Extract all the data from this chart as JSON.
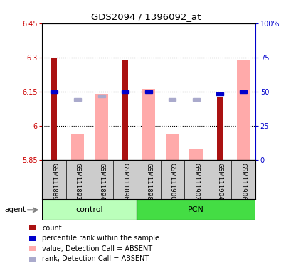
{
  "title": "GDS2094 / 1396092_at",
  "samples": [
    "GSM111889",
    "GSM111892",
    "GSM111894",
    "GSM111896",
    "GSM111898",
    "GSM111900",
    "GSM111902",
    "GSM111904",
    "GSM111906"
  ],
  "ylim_left": [
    5.85,
    6.45
  ],
  "yticks_left": [
    5.85,
    6.0,
    6.15,
    6.3,
    6.45
  ],
  "ytick_labels_left": [
    "5.85",
    "6",
    "6.15",
    "6.3",
    "6.45"
  ],
  "yticks_right_pct": [
    0,
    25,
    50,
    75,
    100
  ],
  "ytick_labels_right": [
    "0",
    "25",
    "50",
    "75",
    "100%"
  ],
  "hlines": [
    6.0,
    6.15,
    6.3
  ],
  "red_bar_values": [
    6.3,
    null,
    null,
    6.285,
    null,
    null,
    null,
    6.125,
    null
  ],
  "pink_bar_values": [
    null,
    5.965,
    6.14,
    null,
    6.16,
    5.965,
    5.9,
    null,
    6.285
  ],
  "blue_square_values": [
    6.148,
    null,
    null,
    6.148,
    6.148,
    null,
    null,
    6.14,
    6.148
  ],
  "lavender_square_values": [
    null,
    6.115,
    6.13,
    null,
    null,
    6.115,
    6.115,
    null,
    null
  ],
  "bar_bottom": 5.85,
  "red_color": "#aa1111",
  "pink_color": "#ffaaaa",
  "blue_color": "#0000cc",
  "lavender_color": "#aaaacc",
  "left_tick_color": "#cc0000",
  "right_tick_color": "#0000cc",
  "bg_xlabel": "#cccccc",
  "bg_group_control": "#bbffbb",
  "bg_group_pcn": "#44dd44",
  "legend_items": [
    "count",
    "percentile rank within the sample",
    "value, Detection Call = ABSENT",
    "rank, Detection Call = ABSENT"
  ],
  "legend_colors": [
    "#aa1111",
    "#0000cc",
    "#ffaaaa",
    "#aaaacc"
  ],
  "control_count": 4,
  "pcn_count": 5
}
